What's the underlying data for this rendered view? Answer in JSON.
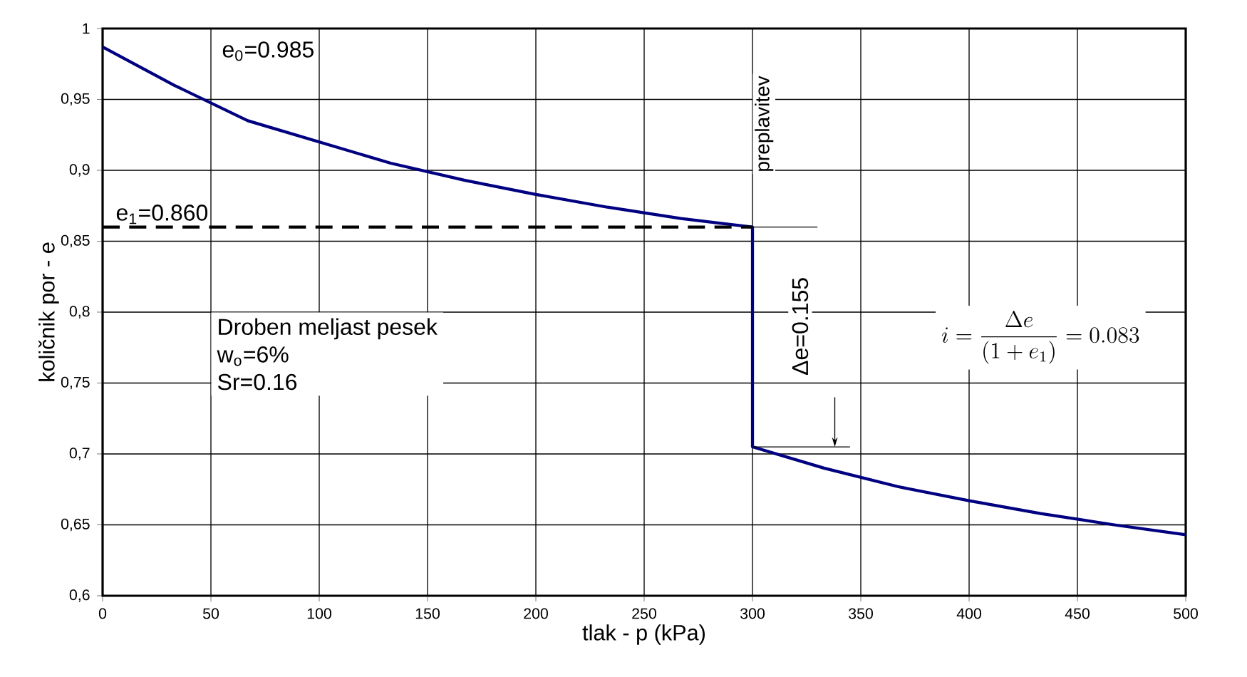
{
  "chart_data": {
    "type": "line",
    "xlabel": "tlak - p (kPa)",
    "ylabel": "količnik por - e",
    "series": [
      {
        "color": "#000080",
        "line_style": "solid",
        "x": [
          0,
          33,
          67,
          100,
          133,
          167,
          200,
          233,
          267,
          300,
          300,
          333,
          367,
          400,
          433,
          467,
          500
        ],
        "values": [
          0.987,
          0.96,
          0.935,
          0.92,
          0.905,
          0.893,
          0.883,
          0.874,
          0.866,
          0.86,
          0.705,
          0.69,
          0.677,
          0.667,
          0.658,
          0.65,
          0.643
        ]
      },
      {
        "color": "#000000",
        "line_style": "dashed",
        "x": [
          0,
          300
        ],
        "values": [
          0.86,
          0.86
        ]
      },
      {
        "color": "#000000",
        "line_style": "solid",
        "x": [
          300,
          330
        ],
        "values": [
          0.86,
          0.86
        ]
      },
      {
        "color": "#000000",
        "line_style": "solid",
        "x": [
          300,
          345
        ],
        "values": [
          0.705,
          0.705
        ]
      }
    ],
    "annotations": [
      "e$_{0}$=0.985",
      "e$_{1}$=0.860",
      "preplavitev",
      "Δe=0.155",
      "i=\\frac{\\Delta e}{(1+e_{1})}=0.083",
      "Droben meljast pesek",
      "w$_{o}$=6%",
      "Sr=0.16"
    ],
    "xlim": [
      0,
      500
    ],
    "xticks": [
      0,
      50,
      100,
      150,
      200,
      250,
      300,
      350,
      400,
      450,
      500
    ],
    "ylim": [
      0.6,
      1
    ],
    "yticks": [
      {
        "value": 0.6,
        "label": "0,6"
      },
      {
        "value": 0.65,
        "label": "0,65"
      },
      {
        "value": 0.7,
        "label": "0,7"
      },
      {
        "value": 0.75,
        "label": "0,75"
      },
      {
        "value": 0.8,
        "label": "0,8"
      },
      {
        "value": 0.85,
        "label": "0,85"
      },
      {
        "value": 0.9,
        "label": "0,9"
      },
      {
        "value": 0.95,
        "label": "0,95"
      },
      1
    ],
    "grid": true,
    "legend": false,
    "marker": "none"
  }
}
